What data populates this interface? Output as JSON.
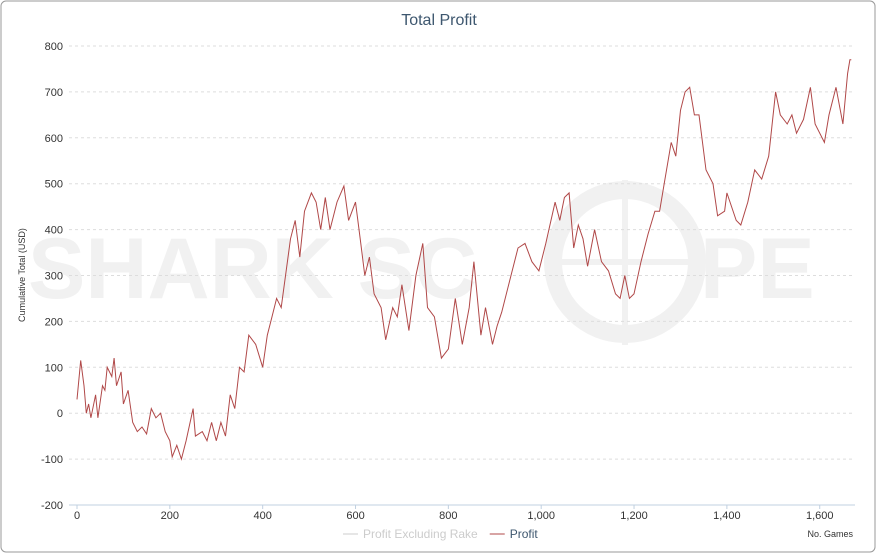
{
  "chart_data": {
    "type": "line",
    "title": "Total Profit",
    "y_label": "Cumulative Total (USD)",
    "x_label": "No. Games",
    "watermark": [
      "SHARK SC",
      "PE"
    ],
    "xlim": [
      0,
      1676
    ],
    "ylim": [
      -200,
      800
    ],
    "xticks": [
      0,
      200,
      400,
      600,
      800,
      {
        "value": 1000,
        "label": "1,000"
      },
      {
        "value": 1200,
        "label": "1,200"
      },
      {
        "value": 1400,
        "label": "1,400"
      },
      {
        "value": 1600,
        "label": "1,600"
      }
    ],
    "yticks": [
      -200,
      -100,
      0,
      100,
      200,
      300,
      400,
      500,
      600,
      700,
      800
    ],
    "grid": true,
    "x": [
      0,
      8,
      15,
      20,
      25,
      30,
      40,
      45,
      55,
      60,
      65,
      75,
      80,
      85,
      95,
      100,
      110,
      120,
      130,
      140,
      150,
      160,
      170,
      180,
      190,
      200,
      205,
      215,
      225,
      235,
      250,
      255,
      270,
      280,
      290,
      300,
      310,
      320,
      330,
      340,
      350,
      360,
      370,
      385,
      400,
      410,
      420,
      430,
      440,
      460,
      470,
      480,
      490,
      505,
      515,
      525,
      535,
      545,
      560,
      575,
      585,
      600,
      610,
      620,
      630,
      640,
      655,
      665,
      680,
      690,
      700,
      715,
      730,
      745,
      755,
      770,
      785,
      800,
      815,
      830,
      845,
      855,
      870,
      880,
      895,
      905,
      915,
      935,
      950,
      965,
      980,
      995,
      1010,
      1030,
      1040,
      1050,
      1060,
      1070,
      1080,
      1090,
      1100,
      1115,
      1130,
      1145,
      1160,
      1170,
      1180,
      1190,
      1200,
      1215,
      1230,
      1245,
      1255,
      1265,
      1280,
      1290,
      1300,
      1310,
      1320,
      1330,
      1340,
      1355,
      1370,
      1380,
      1395,
      1400,
      1420,
      1430,
      1445,
      1460,
      1475,
      1490,
      1505,
      1515,
      1530,
      1540,
      1550,
      1565,
      1580,
      1590,
      1610,
      1620,
      1635,
      1650,
      1660,
      1665,
      1668
    ],
    "series": [
      {
        "name": "Profit",
        "color": "#b04848",
        "visible": true,
        "values": [
          30,
          115,
          60,
          0,
          20,
          -10,
          40,
          -10,
          60,
          50,
          100,
          80,
          120,
          60,
          90,
          20,
          50,
          -20,
          -40,
          -30,
          -45,
          10,
          -10,
          0,
          -40,
          -60,
          -95,
          -70,
          -100,
          -60,
          10,
          -50,
          -40,
          -60,
          -20,
          -60,
          -20,
          -50,
          40,
          10,
          100,
          90,
          170,
          150,
          100,
          170,
          210,
          250,
          230,
          380,
          420,
          340,
          440,
          480,
          460,
          400,
          470,
          400,
          460,
          495,
          420,
          460,
          380,
          300,
          340,
          260,
          230,
          160,
          230,
          210,
          280,
          180,
          300,
          370,
          230,
          210,
          120,
          140,
          250,
          150,
          230,
          330,
          170,
          230,
          150,
          190,
          220,
          300,
          360,
          370,
          330,
          310,
          370,
          460,
          420,
          470,
          480,
          360,
          410,
          380,
          320,
          400,
          330,
          310,
          260,
          250,
          300,
          250,
          260,
          330,
          390,
          440,
          440,
          500,
          590,
          560,
          660,
          700,
          710,
          650,
          650,
          530,
          500,
          430,
          440,
          480,
          420,
          410,
          460,
          530,
          510,
          560,
          700,
          650,
          630,
          650,
          610,
          640,
          710,
          630,
          590,
          650,
          710,
          630,
          740,
          770,
          770
        ]
      },
      {
        "name": "Profit Excluding Rake",
        "color": "#cccccc",
        "visible": false
      }
    ]
  }
}
